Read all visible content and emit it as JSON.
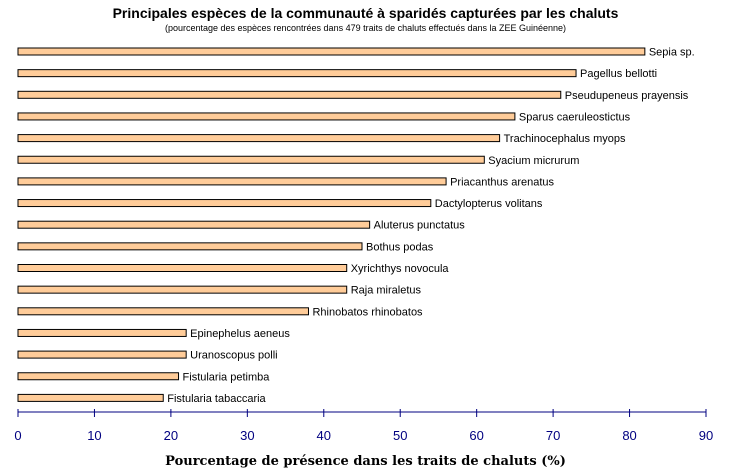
{
  "chart_data": {
    "type": "bar",
    "orientation": "horizontal",
    "title": "Principales espèces de la communauté à sparidés capturées par les chaluts",
    "subtitle": "(pourcentage des espèces rencontrées dans 479 traits de chaluts effectués dans la ZEE Guinéenne)",
    "xlabel": "Pourcentage de présence dans les traits de chaluts (%)",
    "ylabel": "",
    "xlim": [
      0,
      90
    ],
    "xticks": [
      0,
      10,
      20,
      30,
      40,
      50,
      60,
      70,
      80,
      90
    ],
    "grid": false,
    "bar_color": "#FFCC99",
    "bar_edge_color": "#000000",
    "axis_color": "#000080",
    "categories": [
      "Sepia sp.",
      "Pagellus bellotti",
      "Pseudupeneus prayensis",
      "Sparus caeruleostictus",
      "Trachinocephalus myops",
      "Syacium micrurum",
      "Priacanthus arenatus",
      "Dactylopterus volitans",
      "Aluterus punctatus",
      "Bothus podas",
      "Xyrichthys novocula",
      "Raja miraletus",
      "Rhinobatos rhinobatos",
      "Epinephelus aeneus",
      "Uranoscopus polli",
      "Fistularia petimba",
      "Fistularia tabaccaria"
    ],
    "values": [
      82,
      73,
      71,
      65,
      63,
      61,
      56,
      54,
      46,
      45,
      43,
      43,
      38,
      22,
      22,
      21,
      19
    ]
  }
}
